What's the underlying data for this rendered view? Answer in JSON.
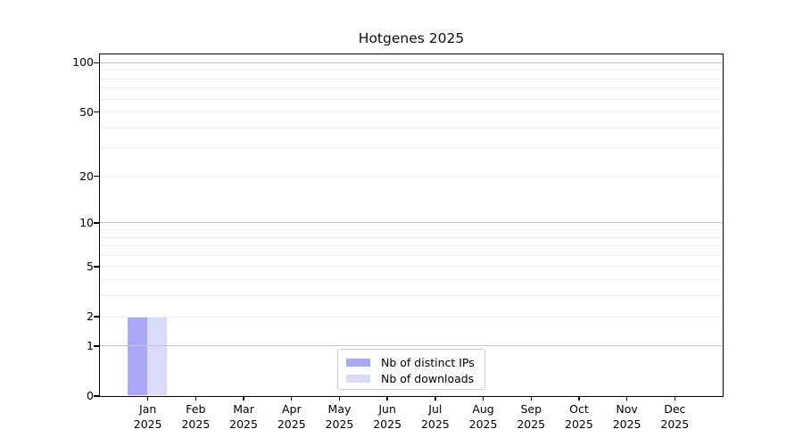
{
  "chart_data": {
    "type": "bar",
    "title": "Hotgenes 2025",
    "yscale": "log1p",
    "ylim": [
      0,
      113
    ],
    "grid": true,
    "legend_position": "lower center",
    "y_ticks": [
      0,
      1,
      2,
      5,
      10,
      20,
      50,
      100
    ],
    "y_major_gridlines": [
      1,
      10,
      100
    ],
    "y_minor_gridlines": [
      2,
      3,
      4,
      5,
      6,
      7,
      8,
      9,
      20,
      30,
      40,
      50,
      60,
      70,
      80,
      90
    ],
    "x_ticks": [
      {
        "month": "Jan",
        "year": "2025"
      },
      {
        "month": "Feb",
        "year": "2025"
      },
      {
        "month": "Mar",
        "year": "2025"
      },
      {
        "month": "Apr",
        "year": "2025"
      },
      {
        "month": "May",
        "year": "2025"
      },
      {
        "month": "Jun",
        "year": "2025"
      },
      {
        "month": "Jul",
        "year": "2025"
      },
      {
        "month": "Aug",
        "year": "2025"
      },
      {
        "month": "Sep",
        "year": "2025"
      },
      {
        "month": "Oct",
        "year": "2025"
      },
      {
        "month": "Nov",
        "year": "2025"
      },
      {
        "month": "Dec",
        "year": "2025"
      }
    ],
    "series": [
      {
        "name": "Nb of distinct IPs",
        "color": "#a8a8f6",
        "values": [
          2,
          0,
          0,
          0,
          0,
          0,
          0,
          0,
          0,
          0,
          0,
          0
        ]
      },
      {
        "name": "Nb of downloads",
        "color": "#dadaf9",
        "values": [
          2,
          0,
          0,
          0,
          0,
          0,
          0,
          0,
          0,
          0,
          0,
          0
        ]
      }
    ]
  },
  "colors": {
    "major_grid": "#c6c6c6",
    "minor_grid": "#ededed",
    "spine": "#000000",
    "background": "#ffffff"
  }
}
